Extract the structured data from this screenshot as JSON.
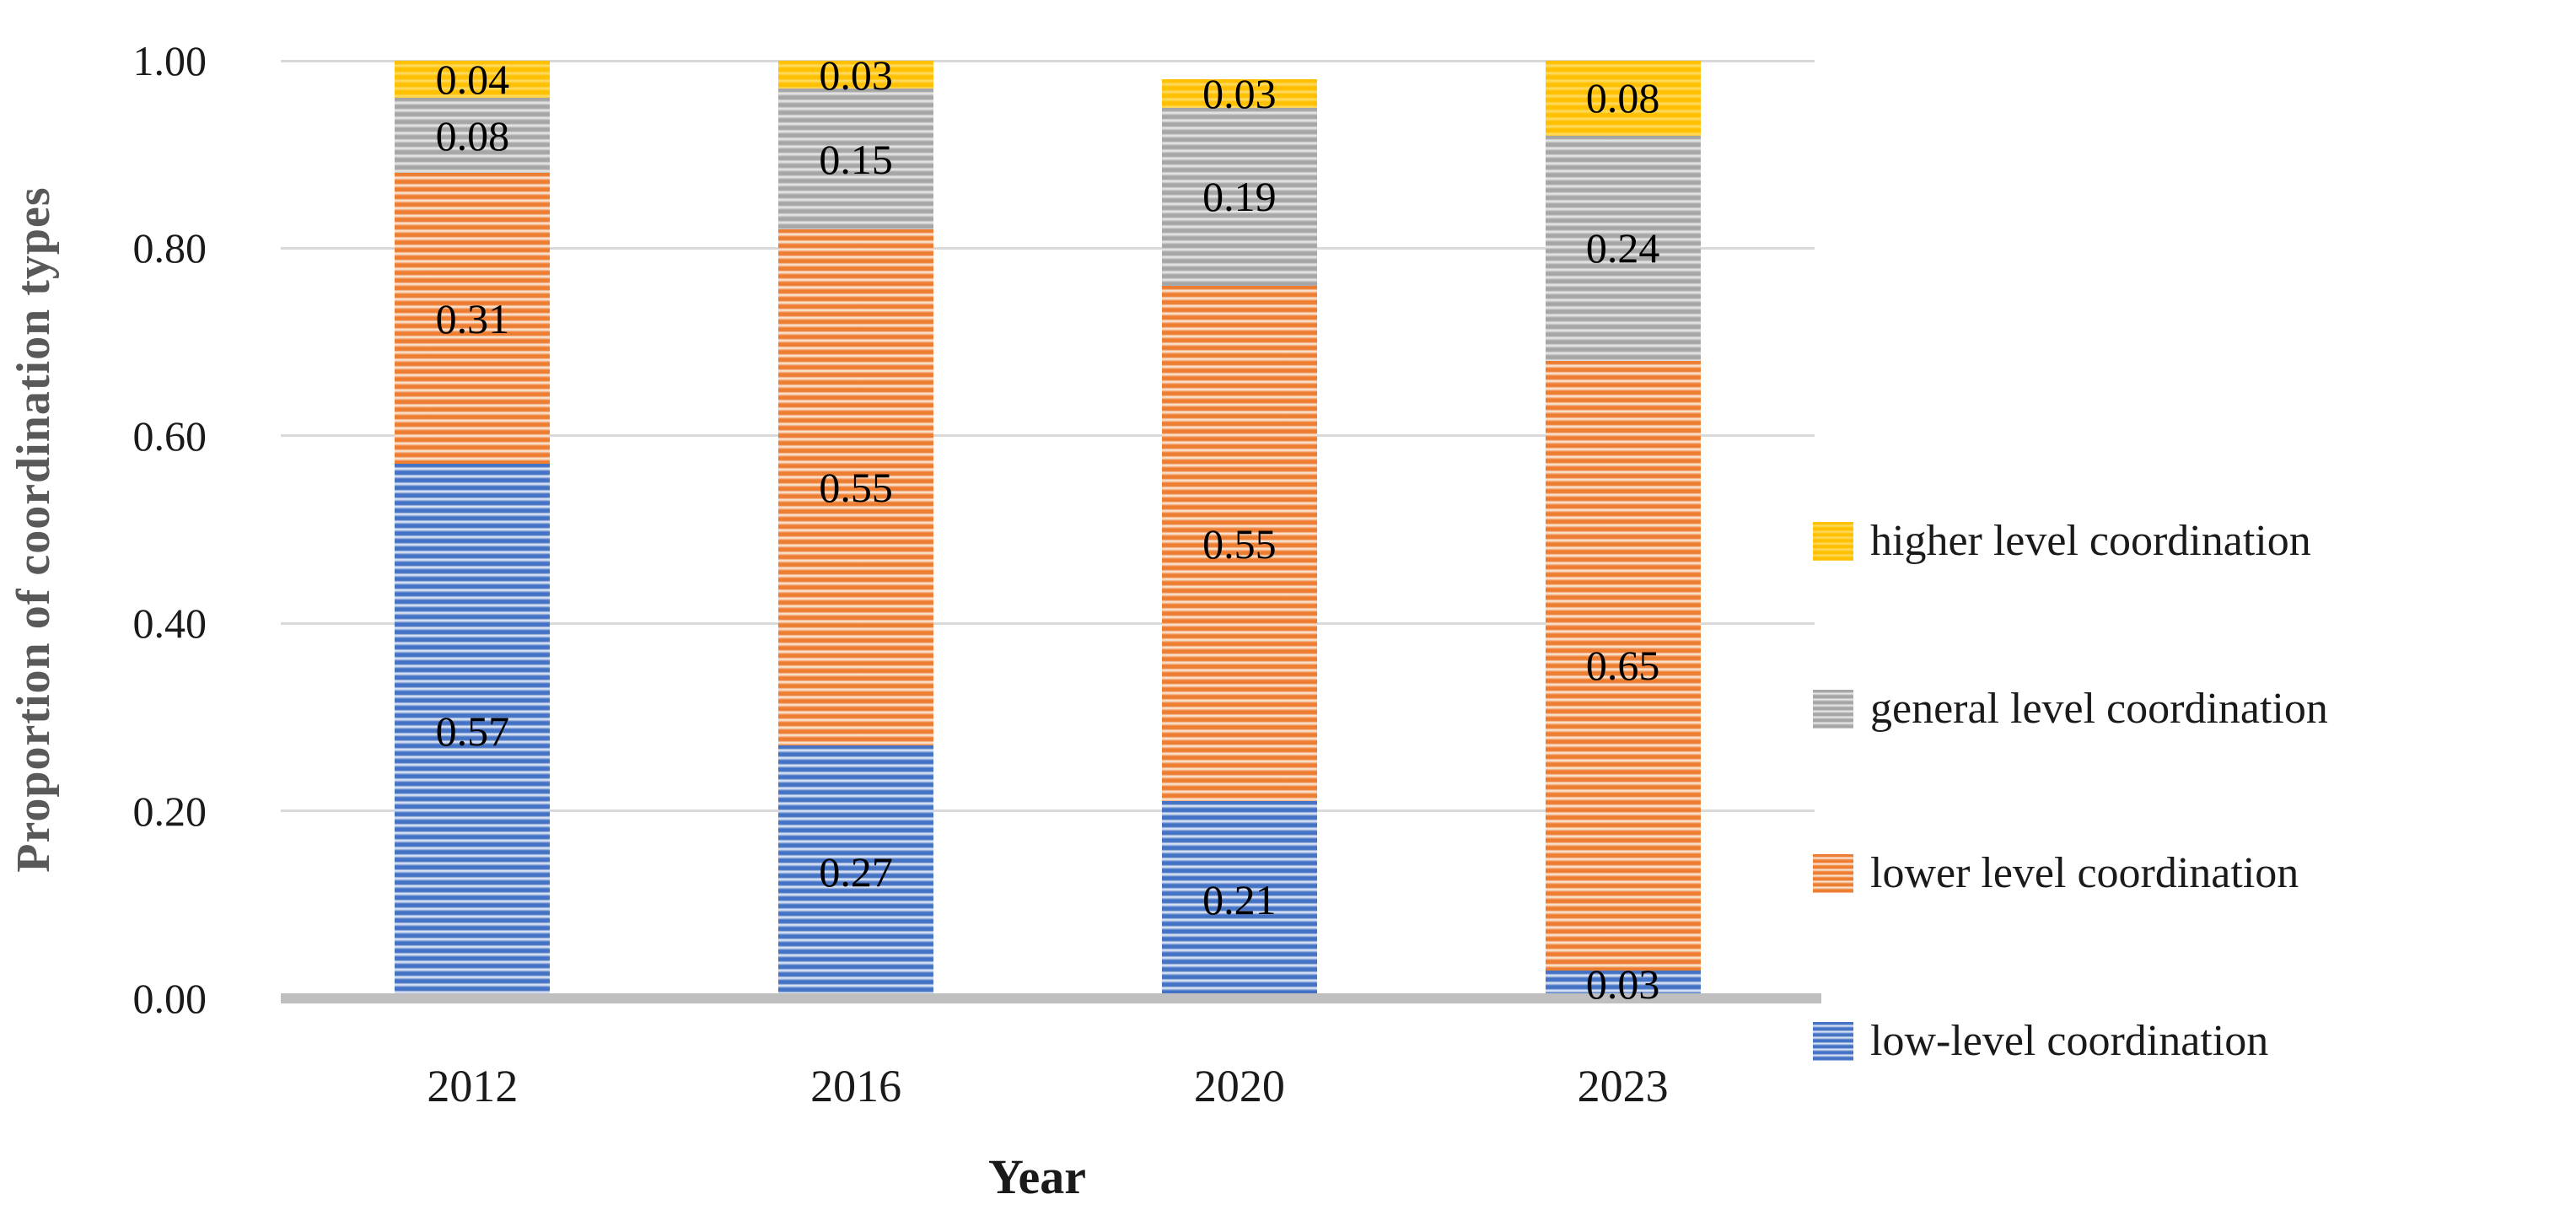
{
  "chart_data": {
    "type": "bar",
    "stacked": true,
    "title": "",
    "xlabel": "Year",
    "ylabel": "Proportion of coordination types",
    "categories": [
      "2012",
      "2016",
      "2020",
      "2023"
    ],
    "series": [
      {
        "name": "low-level coordination",
        "color": "#4472C4",
        "light_color": "#d6e0f3",
        "values": [
          0.57,
          0.27,
          0.21,
          0.03
        ],
        "labels": [
          "0.57",
          "0.27",
          "0.21",
          "0.03"
        ]
      },
      {
        "name": "lower level coordination",
        "color": "#ED7D31",
        "light_color": "#fbe0cc",
        "values": [
          0.31,
          0.55,
          0.55,
          0.65
        ],
        "labels": [
          "0.31",
          "0.55",
          "0.55",
          "0.65"
        ]
      },
      {
        "name": "general level coordination",
        "color": "#A6A6A6",
        "light_color": "#e3e3e3",
        "values": [
          0.08,
          0.15,
          0.19,
          0.24
        ],
        "labels": [
          "0.08",
          "0.15",
          "0.19",
          "0.24"
        ]
      },
      {
        "name": "higher level coordination",
        "color": "#FFC000",
        "light_color": "#ffd95c",
        "values": [
          0.04,
          0.03,
          0.03,
          0.08
        ],
        "labels": [
          "0.04",
          "0.03",
          "0.03",
          "0.08"
        ]
      }
    ],
    "y_ticks": [
      {
        "value": 0.0,
        "label": "0.00"
      },
      {
        "value": 0.2,
        "label": "0.20"
      },
      {
        "value": 0.4,
        "label": "0.40"
      },
      {
        "value": 0.6,
        "label": "0.60"
      },
      {
        "value": 0.8,
        "label": "0.80"
      },
      {
        "value": 1.0,
        "label": "1.00"
      }
    ],
    "ylim": [
      0,
      1
    ],
    "grid": true,
    "legend_position": "right",
    "legend": [
      "higher level coordination",
      "general level coordination",
      "lower level coordination",
      "low-level coordination"
    ],
    "colors": {
      "gridline": "#d9d9d9",
      "axis_line": "#bfbfbf",
      "y_title": "#595959",
      "label_text": "#000000"
    }
  }
}
